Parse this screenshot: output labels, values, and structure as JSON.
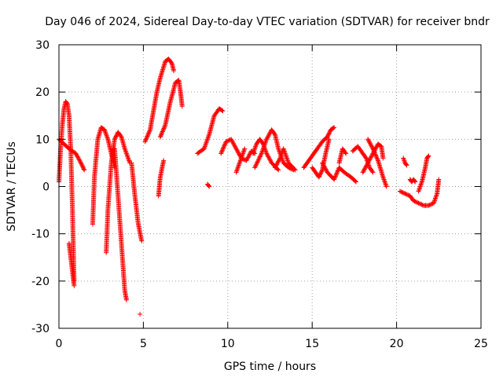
{
  "chart_data": {
    "type": "scatter",
    "title": "Day 046 of 2024, Sidereal Day-to-day VTEC variation (SDTVAR) for receiver bndr",
    "xlabel": "GPS time / hours",
    "ylabel": "SDTVAR / TECUs",
    "xlim": [
      0,
      25
    ],
    "ylim": [
      -30,
      30
    ],
    "xticks": [
      0,
      5,
      10,
      15,
      20,
      25
    ],
    "yticks": [
      -30,
      -20,
      -10,
      0,
      10,
      20,
      30
    ],
    "xtick_labels": [
      "0",
      "5",
      "10",
      "15",
      "20",
      "25"
    ],
    "ytick_labels": [
      "-30",
      "-20",
      "-10",
      "0",
      "10",
      "20",
      "30"
    ],
    "grid": true,
    "marker": "+",
    "series_color": "#ff0000",
    "arcs": [
      [
        [
          0.0,
          1.0
        ],
        [
          0.1,
          8.0
        ],
        [
          0.2,
          13.0
        ],
        [
          0.3,
          16.5
        ],
        [
          0.4,
          18.0
        ],
        [
          0.5,
          17.5
        ],
        [
          0.6,
          15.0
        ],
        [
          0.7,
          8.0
        ],
        [
          0.8,
          -5.0
        ],
        [
          0.9,
          -20.0
        ]
      ],
      [
        [
          0.0,
          10.0
        ],
        [
          0.3,
          9.0
        ],
        [
          0.6,
          8.0
        ],
        [
          1.0,
          7.0
        ],
        [
          1.3,
          5.0
        ],
        [
          1.5,
          3.5
        ]
      ],
      [
        [
          0.6,
          -12.0
        ],
        [
          0.7,
          -15.0
        ],
        [
          0.8,
          -18.0
        ],
        [
          0.9,
          -21.0
        ]
      ],
      [
        [
          2.0,
          -8.0
        ],
        [
          2.1,
          2.0
        ],
        [
          2.3,
          10.0
        ],
        [
          2.5,
          12.5
        ],
        [
          2.7,
          12.0
        ],
        [
          2.9,
          10.0
        ],
        [
          3.1,
          7.0
        ],
        [
          3.3,
          4.0
        ]
      ],
      [
        [
          2.8,
          -14.0
        ],
        [
          2.9,
          -5.0
        ],
        [
          3.1,
          5.0
        ],
        [
          3.3,
          10.0
        ],
        [
          3.5,
          11.5
        ],
        [
          3.7,
          10.5
        ],
        [
          3.9,
          8.0
        ],
        [
          4.1,
          6.0
        ],
        [
          4.2,
          5.0
        ]
      ],
      [
        [
          3.3,
          8.0
        ],
        [
          3.5,
          -2.0
        ],
        [
          3.7,
          -12.0
        ],
        [
          3.9,
          -22.0
        ],
        [
          4.0,
          -24.0
        ]
      ],
      [
        [
          4.3,
          5.0
        ],
        [
          4.5,
          -2.0
        ],
        [
          4.7,
          -8.0
        ],
        [
          4.9,
          -11.5
        ]
      ],
      [
        [
          4.8,
          -27.0
        ]
      ],
      [
        [
          5.1,
          9.5
        ],
        [
          5.4,
          12.0
        ],
        [
          5.6,
          16.0
        ],
        [
          5.8,
          20.0
        ],
        [
          6.0,
          23.0
        ],
        [
          6.3,
          26.5
        ],
        [
          6.5,
          27.0
        ],
        [
          6.7,
          26.0
        ],
        [
          6.8,
          24.5
        ]
      ],
      [
        [
          5.9,
          -2.0
        ],
        [
          6.0,
          2.0
        ],
        [
          6.2,
          5.5
        ]
      ],
      [
        [
          6.0,
          10.5
        ],
        [
          6.3,
          13.0
        ],
        [
          6.6,
          18.0
        ],
        [
          6.9,
          22.0
        ],
        [
          7.1,
          22.5
        ],
        [
          7.2,
          20.0
        ],
        [
          7.3,
          17.0
        ]
      ],
      [
        [
          8.2,
          7.0
        ],
        [
          8.6,
          8.0
        ],
        [
          8.9,
          11.0
        ],
        [
          9.2,
          15.0
        ],
        [
          9.5,
          16.5
        ],
        [
          9.7,
          16.0
        ]
      ],
      [
        [
          8.8,
          0.5
        ],
        [
          8.9,
          0.0
        ]
      ],
      [
        [
          9.6,
          7.0
        ],
        [
          9.9,
          9.5
        ],
        [
          10.2,
          10.0
        ],
        [
          10.5,
          8.0
        ],
        [
          10.8,
          6.0
        ],
        [
          11.1,
          5.5
        ],
        [
          11.4,
          7.5
        ],
        [
          11.6,
          7.0
        ]
      ],
      [
        [
          10.5,
          3.0
        ],
        [
          10.8,
          6.0
        ],
        [
          11.0,
          8.0
        ]
      ],
      [
        [
          11.5,
          7.0
        ],
        [
          11.7,
          9.0
        ],
        [
          11.9,
          10.0
        ],
        [
          12.1,
          9.0
        ],
        [
          12.3,
          7.0
        ],
        [
          12.6,
          5.0
        ],
        [
          13.0,
          3.5
        ]
      ],
      [
        [
          11.6,
          4.0
        ],
        [
          12.0,
          7.0
        ],
        [
          12.3,
          10.0
        ],
        [
          12.6,
          12.0
        ],
        [
          12.8,
          11.0
        ],
        [
          13.0,
          8.0
        ],
        [
          13.3,
          5.0
        ],
        [
          13.6,
          4.0
        ],
        [
          13.9,
          3.5
        ]
      ],
      [
        [
          12.8,
          4.0
        ],
        [
          13.1,
          6.0
        ],
        [
          13.3,
          8.0
        ],
        [
          13.6,
          5.0
        ],
        [
          14.0,
          3.5
        ]
      ],
      [
        [
          14.5,
          4.0
        ],
        [
          14.9,
          6.0
        ],
        [
          15.3,
          8.0
        ],
        [
          15.6,
          9.5
        ],
        [
          15.9,
          10.5
        ],
        [
          16.1,
          12.0
        ],
        [
          16.3,
          12.5
        ]
      ],
      [
        [
          15.0,
          4.0
        ],
        [
          15.2,
          3.0
        ],
        [
          15.4,
          2.0
        ],
        [
          15.6,
          3.5
        ],
        [
          15.8,
          7.0
        ],
        [
          16.0,
          10.0
        ]
      ],
      [
        [
          15.6,
          5.0
        ],
        [
          15.9,
          3.0
        ],
        [
          16.3,
          1.5
        ],
        [
          16.6,
          4.0
        ],
        [
          16.9,
          3.0
        ],
        [
          17.3,
          2.0
        ],
        [
          17.6,
          1.0
        ]
      ],
      [
        [
          16.6,
          5.0
        ],
        [
          16.8,
          8.0
        ],
        [
          17.0,
          7.0
        ]
      ],
      [
        [
          17.4,
          7.5
        ],
        [
          17.7,
          8.5
        ],
        [
          18.0,
          7.0
        ],
        [
          18.2,
          6.0
        ],
        [
          18.4,
          4.0
        ],
        [
          18.6,
          3.0
        ]
      ],
      [
        [
          18.0,
          3.0
        ],
        [
          18.3,
          5.0
        ],
        [
          18.6,
          7.0
        ],
        [
          18.9,
          9.0
        ],
        [
          19.1,
          8.5
        ],
        [
          19.2,
          6.0
        ]
      ],
      [
        [
          18.3,
          10.0
        ],
        [
          18.6,
          8.0
        ],
        [
          18.9,
          5.5
        ],
        [
          19.2,
          2.0
        ],
        [
          19.4,
          0.0
        ]
      ],
      [
        [
          20.2,
          -1.0
        ],
        [
          20.5,
          -1.5
        ],
        [
          20.8,
          -2.0
        ],
        [
          21.0,
          -3.0
        ],
        [
          21.3,
          -3.5
        ],
        [
          21.6,
          -4.0
        ],
        [
          21.9,
          -4.0
        ],
        [
          22.2,
          -3.5
        ],
        [
          22.4,
          -1.5
        ],
        [
          22.5,
          1.5
        ]
      ],
      [
        [
          20.4,
          6.0
        ],
        [
          20.5,
          5.0
        ],
        [
          20.6,
          4.5
        ]
      ],
      [
        [
          20.8,
          1.5
        ],
        [
          20.9,
          1.0
        ],
        [
          21.0,
          1.5
        ],
        [
          21.1,
          1.0
        ]
      ],
      [
        [
          21.3,
          -1.0
        ],
        [
          21.5,
          1.0
        ],
        [
          21.7,
          4.0
        ],
        [
          21.8,
          6.0
        ],
        [
          21.9,
          6.5
        ]
      ]
    ]
  }
}
